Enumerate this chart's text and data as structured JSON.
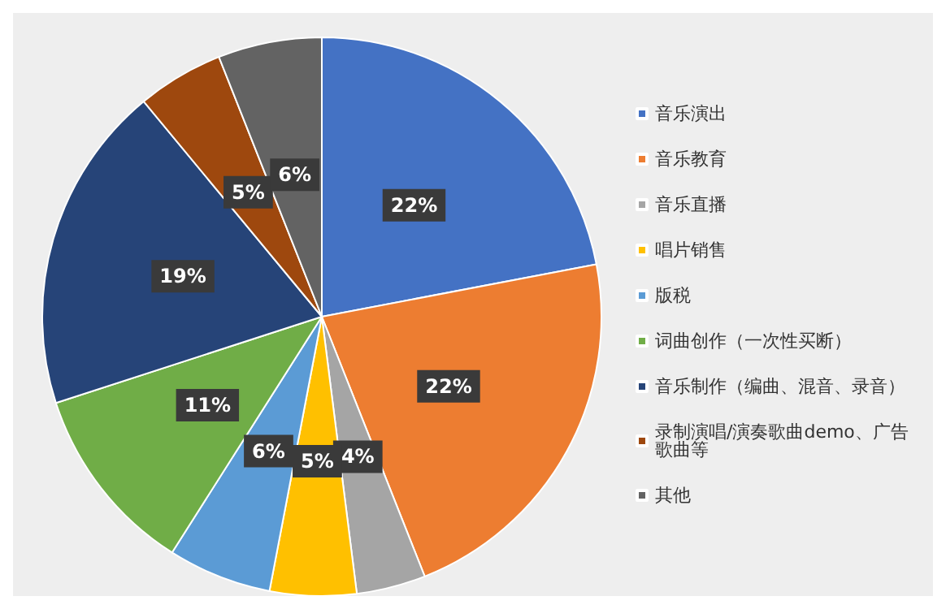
{
  "chart_data": {
    "type": "pie",
    "categories": [
      "音乐演出",
      "音乐教育",
      "音乐直播",
      "唱片销售",
      "版税",
      "词曲创作（一次性买断）",
      "音乐制作（编曲、混音、录音）",
      "录制演唱/演奏歌曲demo、广告歌曲等",
      "其他"
    ],
    "values": [
      22,
      22,
      4,
      5,
      6,
      11,
      19,
      5,
      6
    ],
    "colors": [
      "#4472c4",
      "#ed7d31",
      "#a5a5a5",
      "#ffc000",
      "#5b9bd5",
      "#70ad47",
      "#264478",
      "#9e480e",
      "#636363"
    ],
    "value_labels": [
      "22%",
      "22%",
      "4%",
      "5%",
      "6%",
      "11%",
      "19%",
      "5%",
      "6%"
    ],
    "legend": "right"
  }
}
